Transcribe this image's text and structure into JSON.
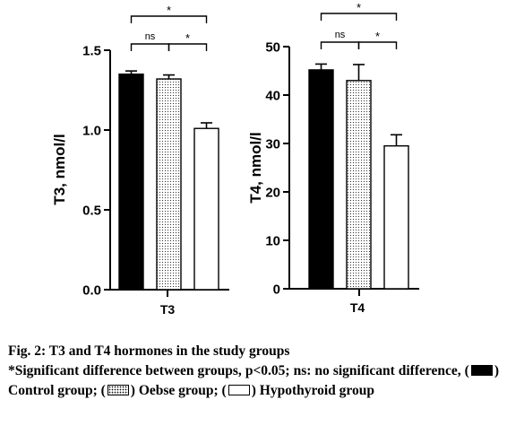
{
  "chart_data": [
    {
      "type": "bar",
      "categories": [
        "T3"
      ],
      "ylabel": "T3, nmol/l",
      "ylim": [
        0,
        1.5
      ],
      "yticks": [
        "0.0",
        "0.5",
        "1.0",
        "1.5"
      ],
      "series": [
        {
          "key": "control",
          "values": [
            1.35
          ],
          "error": [
            0.02
          ],
          "fill": "solid"
        },
        {
          "key": "obese",
          "values": [
            1.32
          ],
          "error": [
            0.025
          ],
          "fill": "dots"
        },
        {
          "key": "hypothyroid",
          "values": [
            1.01
          ],
          "error": [
            0.035
          ],
          "fill": "blank"
        }
      ],
      "significance": [
        {
          "from": 0,
          "to": 2,
          "label": "*",
          "level": 1
        },
        {
          "from": 0,
          "to": 1,
          "label": "ns",
          "level": 0
        },
        {
          "from": 1,
          "to": 2,
          "label": "*",
          "level": 0
        }
      ],
      "grid": false
    },
    {
      "type": "bar",
      "categories": [
        "T4"
      ],
      "ylabel": "T4, nmol/l",
      "ylim": [
        0,
        50
      ],
      "yticks": [
        "0",
        "10",
        "20",
        "30",
        "40",
        "50"
      ],
      "series": [
        {
          "key": "control",
          "values": [
            45.2
          ],
          "error": [
            1.2
          ],
          "fill": "solid"
        },
        {
          "key": "obese",
          "values": [
            43.0
          ],
          "error": [
            3.3
          ],
          "fill": "dots"
        },
        {
          "key": "hypothyroid",
          "values": [
            29.5
          ],
          "error": [
            2.3
          ],
          "fill": "blank"
        }
      ],
      "significance": [
        {
          "from": 0,
          "to": 2,
          "label": "*",
          "level": 1
        },
        {
          "from": 0,
          "to": 1,
          "label": "ns",
          "level": 0
        },
        {
          "from": 1,
          "to": 2,
          "label": "*",
          "level": 0
        }
      ],
      "grid": false
    }
  ],
  "caption": {
    "title": "Fig. 2: T3 and T4 hormones in the study groups",
    "note": "*Significant difference between groups, p<0.05; ns: no significant difference,",
    "paren_open": "(",
    "control": ") Control group; (",
    "obese": ") Oebse group; (",
    "hypothyroid_close": ")",
    "hypothyroid": "Hypothyroid group"
  }
}
